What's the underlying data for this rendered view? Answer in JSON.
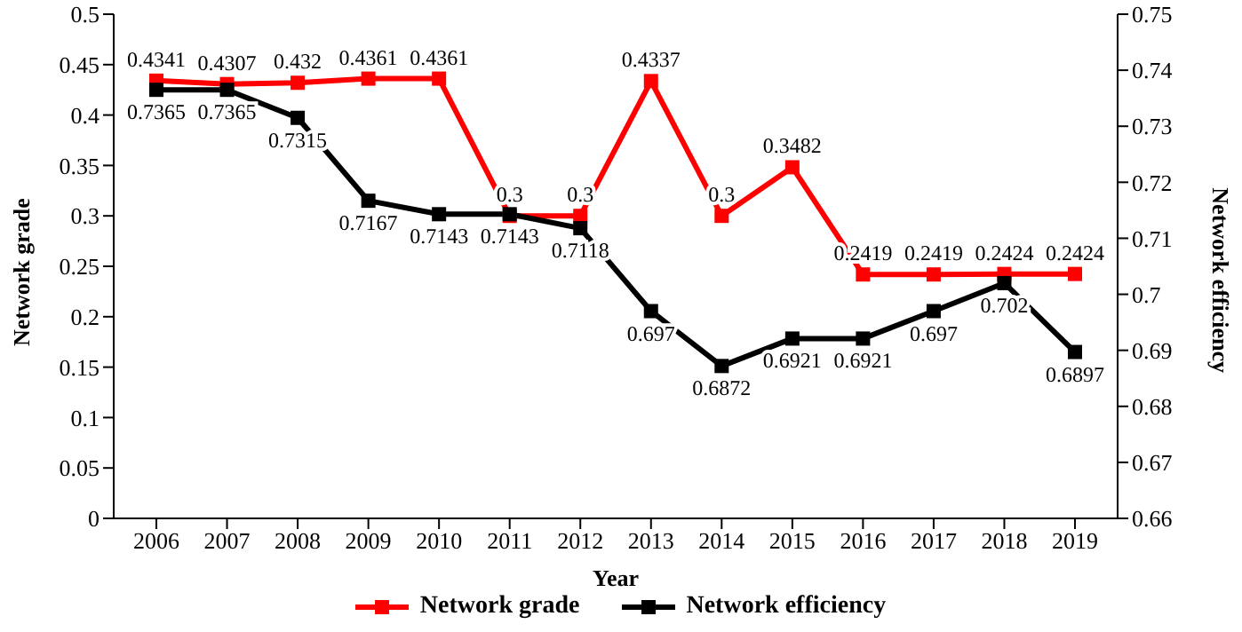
{
  "chart_data": {
    "type": "line",
    "xlabel": "Year",
    "ylabel": "Network grade",
    "y2label": "Network efficiency",
    "categories": [
      "2006",
      "2007",
      "2008",
      "2009",
      "2010",
      "2011",
      "2012",
      "2013",
      "2014",
      "2015",
      "2016",
      "2017",
      "2018",
      "2019"
    ],
    "series": [
      {
        "name": "Network grade",
        "color": "#ff0000",
        "values": [
          0.4341,
          0.4307,
          0.432,
          0.4361,
          0.4361,
          0.3,
          0.3,
          0.4337,
          0.3,
          0.3482,
          0.2419,
          0.2419,
          0.2424,
          0.2424
        ]
      },
      {
        "name": "Network efficiency",
        "color": "#000000",
        "axis": "y2",
        "values": [
          0.7365,
          0.7365,
          0.7315,
          0.7167,
          0.7143,
          0.7143,
          0.7118,
          0.697,
          0.6872,
          0.6921,
          0.6921,
          0.697,
          0.702,
          0.6897
        ]
      }
    ],
    "ylim": [
      0,
      0.5
    ],
    "yticks": [
      0,
      0.05,
      0.1,
      0.15,
      0.2,
      0.25,
      0.3,
      0.35,
      0.4,
      0.45,
      0.5
    ],
    "y2lim": [
      0.66,
      0.75
    ],
    "y2ticks": [
      0.66,
      0.67,
      0.68,
      0.69,
      0.7,
      0.71,
      0.72,
      0.73,
      0.74,
      0.75
    ],
    "data_labels": true,
    "marker": "square",
    "line_style": "solid",
    "legend": "bottom",
    "grid": false
  }
}
